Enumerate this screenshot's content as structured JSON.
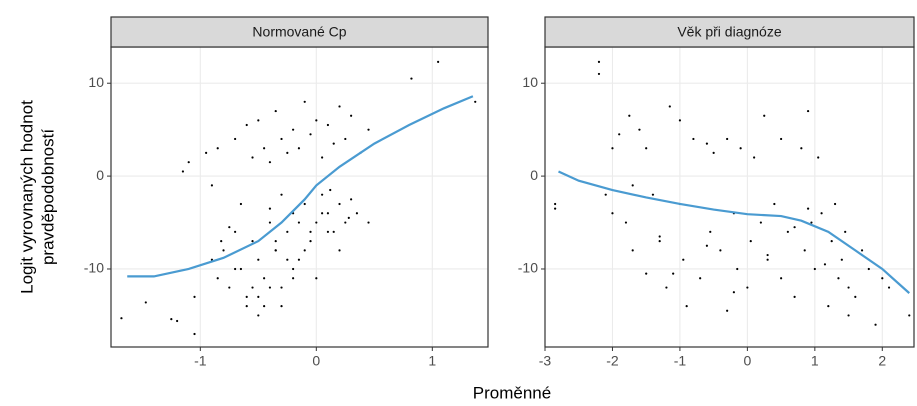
{
  "axis_labels": {
    "y": [
      "Logit vyrovnaných hodnot",
      "pravděpodobností"
    ],
    "x": "Proměnné"
  },
  "chart_data": [
    {
      "type": "scatter",
      "title": "Normované Cp",
      "xlim": [
        -1.77,
        1.48
      ],
      "ylim": [
        -18.4,
        13.9
      ],
      "xticks": [
        -1,
        0,
        1
      ],
      "yticks": [
        -10,
        0,
        10
      ],
      "grid": true,
      "series": [
        {
          "mode": "points",
          "color": "#000000",
          "x": [
            -1.68,
            -1.47,
            -1.25,
            -1.2,
            -1.05,
            0.82,
            1.05,
            1.37,
            -1.15,
            -1.1,
            -1.05,
            -0.95,
            -0.85,
            -0.82,
            -0.7,
            -0.6,
            -0.55,
            -0.5,
            -0.45,
            -0.4,
            -0.35,
            -0.3,
            -0.25,
            -0.2,
            -0.15,
            -0.1,
            -0.05,
            0,
            0.05,
            0.1,
            0.15,
            0.2,
            0.25,
            0.3,
            0.38,
            0.45,
            -0.9,
            -0.85,
            -0.8,
            -0.75,
            -0.7,
            -0.65,
            -0.6,
            -0.55,
            -0.5,
            -0.45,
            -0.4,
            -0.35,
            -0.3,
            -0.25,
            -0.2,
            -0.15,
            -0.1,
            -0.05,
            0,
            0.05,
            0.1,
            0.15,
            0.2,
            0.25,
            0.3,
            0.35,
            0.45,
            -0.6,
            -0.5,
            -0.4,
            -0.3,
            -0.2,
            -0.1,
            0,
            0.1,
            0.2,
            -0.7,
            -0.55,
            -0.45,
            -0.35,
            -0.25,
            -0.15,
            -0.05,
            0.05,
            -0.65,
            -0.5,
            -0.35,
            -0.2,
            -0.3,
            -0.4,
            0.12,
            0.28,
            -0.9,
            -0.75
          ],
          "values": [
            -15.3,
            -13.6,
            -15.4,
            -15.6,
            -17,
            10.5,
            12.3,
            8,
            0.5,
            1.5,
            -13,
            2.5,
            3,
            -7,
            4,
            5.5,
            2,
            6,
            3,
            1.5,
            7,
            4,
            2.5,
            5,
            3,
            8,
            4.5,
            6,
            2,
            5.5,
            3.5,
            7.5,
            4,
            6.5,
            2.5,
            5,
            -9,
            -11,
            -8,
            -12,
            -6,
            -10,
            -13,
            -7,
            -9,
            -11,
            -5,
            -8,
            -12,
            -6,
            -4,
            -9,
            -3,
            -7,
            -5,
            -2,
            -4,
            -6,
            -3,
            -5,
            -2.5,
            -4,
            -5,
            -14,
            -15,
            -12,
            -14,
            -10,
            -8,
            -11,
            -6,
            -8,
            -10,
            -12,
            -14,
            -7,
            -9,
            -5,
            -6,
            -4,
            -3,
            -13,
            -8,
            -11,
            -2,
            -3.5,
            -1.5,
            -4.5,
            -1,
            -5.5
          ]
        },
        {
          "mode": "line",
          "color": "#4a9bd1",
          "x": [
            -1.63,
            -1.4,
            -1.1,
            -0.8,
            -0.5,
            -0.3,
            -0.1,
            0,
            0.2,
            0.5,
            0.8,
            1.1,
            1.35
          ],
          "values": [
            -10.8,
            -10.8,
            -10,
            -8.8,
            -7,
            -5,
            -2.5,
            -1,
            1,
            3.5,
            5.5,
            7.3,
            8.6
          ]
        }
      ]
    },
    {
      "type": "scatter",
      "title": "Věk při diagnóze",
      "xlim": [
        -3.0,
        2.47
      ],
      "ylim": [
        -18.4,
        13.9
      ],
      "xticks": [
        -3,
        -2,
        -1,
        0,
        1,
        2
      ],
      "yticks": [
        -10,
        0,
        10
      ],
      "grid": true,
      "series": [
        {
          "mode": "points",
          "color": "#000000",
          "x": [
            -2.85,
            -2.85,
            -2.2,
            -2.2,
            -2.1,
            -2.0,
            -1.9,
            -1.8,
            -1.75,
            -1.7,
            -1.6,
            -1.5,
            -1.5,
            -1.4,
            -1.3,
            -1.2,
            -1.15,
            -1.0,
            -1.0,
            -0.95,
            -0.9,
            -0.8,
            -0.7,
            -0.6,
            -0.55,
            -0.5,
            -0.4,
            -0.3,
            -0.2,
            -0.15,
            -0.1,
            0,
            0.05,
            0.1,
            0.2,
            0.25,
            0.3,
            0.4,
            0.5,
            0.5,
            0.6,
            0.7,
            0.8,
            0.85,
            0.9,
            0.95,
            1.0,
            1.05,
            1.1,
            1.2,
            1.25,
            1.3,
            1.35,
            1.4,
            1.45,
            1.5,
            1.6,
            1.7,
            1.8,
            1.9,
            2.0,
            2.1,
            2.4,
            -1.3,
            -0.6,
            0.3,
            0.9,
            -0.2,
            1.5,
            -1.7,
            -0.3,
            0.7,
            1.15,
            -2.0,
            -1.1
          ],
          "values": [
            -3,
            -3.5,
            12.3,
            11,
            -2,
            3,
            4.5,
            -5,
            6.5,
            -8,
            5,
            -10.5,
            3,
            -2,
            -7,
            -12,
            7.5,
            -3,
            6,
            -9,
            -14,
            4,
            -11,
            3.5,
            -6,
            2.5,
            -8,
            4,
            -4,
            -10,
            3,
            -12,
            -7,
            2,
            -5,
            6.5,
            -9,
            -3,
            -11,
            4,
            -6,
            -13,
            3,
            -8,
            7,
            -5,
            -10,
            2,
            -4,
            -14,
            -7,
            -3,
            -11,
            -9,
            -6,
            -15,
            -13,
            -8,
            -10,
            -16,
            -11,
            -12,
            -15,
            -6.5,
            -7.5,
            -8.5,
            -3.5,
            -12.5,
            -12,
            -1,
            -14.5,
            -5.5,
            -9.5,
            -4,
            -10.5
          ]
        },
        {
          "mode": "line",
          "color": "#4a9bd1",
          "x": [
            -2.8,
            -2.5,
            -2,
            -1.5,
            -1,
            -0.5,
            0,
            0.5,
            0.8,
            1.2,
            1.6,
            2,
            2.4
          ],
          "values": [
            0.5,
            -0.5,
            -1.5,
            -2.3,
            -3,
            -3.6,
            -4.1,
            -4.3,
            -4.8,
            -6,
            -8,
            -10,
            -12.6
          ]
        }
      ]
    }
  ]
}
